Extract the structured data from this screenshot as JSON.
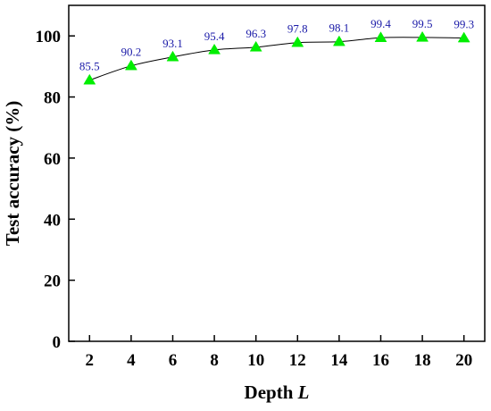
{
  "chart_data": {
    "type": "line",
    "x": [
      2,
      4,
      6,
      8,
      10,
      12,
      14,
      16,
      18,
      20
    ],
    "series": [
      {
        "values": [
          85.5,
          90.2,
          93.1,
          95.4,
          96.3,
          97.8,
          98.1,
          99.4,
          99.5,
          99.3
        ],
        "value_labels": [
          "85.5",
          "90.2",
          "93.1",
          "95.4",
          "96.3",
          "97.8",
          "98.1",
          "99.4",
          "99.5",
          "99.3"
        ],
        "marker": "triangle-up",
        "marker_color": "#00ee00",
        "line_color": "#000000"
      }
    ],
    "xlabel_main": "Depth",
    "xlabel_italic": "L",
    "ylabel": "Test accuracy (%)",
    "xlim": [
      1,
      21
    ],
    "ylim": [
      0,
      110
    ],
    "xticks": [
      "2",
      "4",
      "6",
      "8",
      "10",
      "12",
      "14",
      "16",
      "18",
      "20"
    ],
    "yticks": [
      "0",
      "20",
      "40",
      "60",
      "80",
      "100"
    ],
    "label_color": "#1a1aa8",
    "grid": false,
    "legend": "none"
  }
}
